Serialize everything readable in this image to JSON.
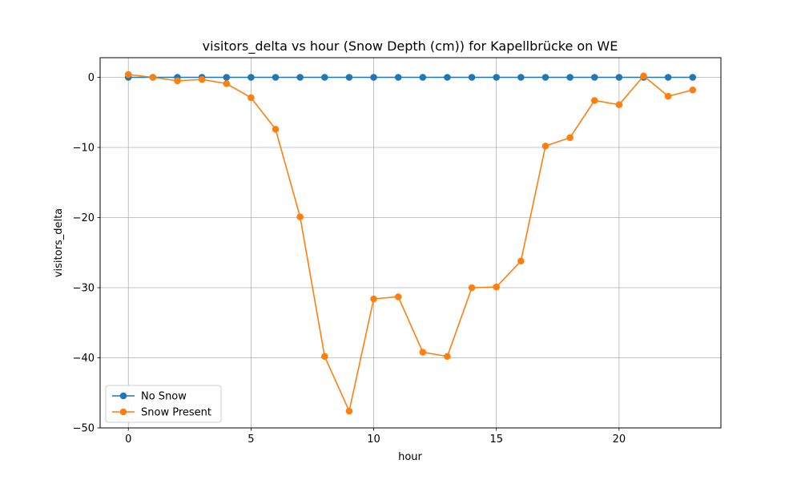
{
  "chart_data": {
    "type": "line",
    "title": "visitors_delta vs hour (Snow Depth (cm)) for Kapellbrücke on WE",
    "xlabel": "hour",
    "ylabel": "visitors_delta",
    "xlim": [
      -1.15,
      24.15
    ],
    "ylim": [
      -50,
      2.8
    ],
    "xticks": [
      0,
      5,
      10,
      15,
      20
    ],
    "yticks": [
      0,
      -10,
      -20,
      -30,
      -40,
      -50
    ],
    "xtick_labels": [
      "0",
      "5",
      "10",
      "15",
      "20"
    ],
    "ytick_labels": [
      "0",
      "−10",
      "−20",
      "−30",
      "−40",
      "−50"
    ],
    "grid": true,
    "legend_position": "lower-left",
    "x": [
      0,
      1,
      2,
      3,
      4,
      5,
      6,
      7,
      8,
      9,
      10,
      11,
      12,
      13,
      14,
      15,
      16,
      17,
      18,
      19,
      20,
      21,
      22,
      23
    ],
    "series": [
      {
        "name": "No Snow",
        "color": "#1f77b4",
        "marker": "circle",
        "values": [
          0,
          0,
          0,
          0,
          0,
          0,
          0,
          0,
          0,
          0,
          0,
          0,
          0,
          0,
          0,
          0,
          0,
          0,
          0,
          0,
          0,
          0,
          0,
          0
        ]
      },
      {
        "name": "Snow Present",
        "color": "#ff7f0e",
        "marker": "circle",
        "values": [
          0.4,
          0.0,
          -0.5,
          -0.3,
          -0.9,
          -2.9,
          -7.4,
          -19.9,
          -39.8,
          -47.6,
          -31.6,
          -31.3,
          -39.2,
          -39.8,
          -30.0,
          -29.9,
          -26.2,
          -9.8,
          -8.6,
          -3.3,
          -3.9,
          0.2,
          -2.7,
          -1.8
        ]
      }
    ]
  }
}
